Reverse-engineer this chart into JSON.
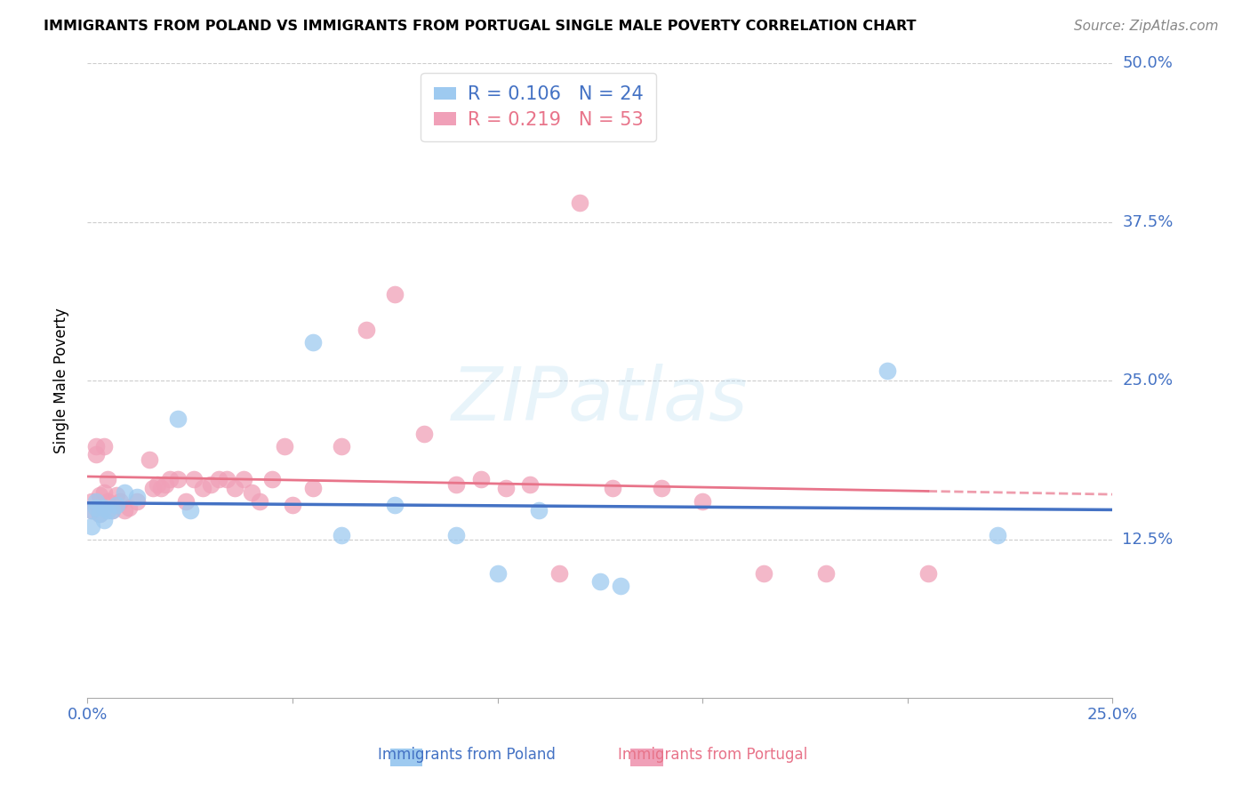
{
  "title": "IMMIGRANTS FROM POLAND VS IMMIGRANTS FROM PORTUGAL SINGLE MALE POVERTY CORRELATION CHART",
  "source": "Source: ZipAtlas.com",
  "ylabel": "Single Male Poverty",
  "xlim": [
    0.0,
    0.25
  ],
  "ylim": [
    0.0,
    0.5
  ],
  "xtick_positions": [
    0.0,
    0.05,
    0.1,
    0.15,
    0.2,
    0.25
  ],
  "xtick_labels": [
    "0.0%",
    "",
    "",
    "",
    "",
    "25.0%"
  ],
  "ytick_gridlines": [
    0.125,
    0.25,
    0.375,
    0.5
  ],
  "ytick_right_labels": [
    "50.0%",
    "37.5%",
    "25.0%",
    "12.5%"
  ],
  "ytick_right_values": [
    0.5,
    0.375,
    0.25,
    0.125
  ],
  "color_poland_fill": "#9ECAF0",
  "color_portugal_fill": "#F0A0B8",
  "color_poland_line": "#4472C4",
  "color_portugal_line": "#E8748A",
  "color_axis_text": "#4472C4",
  "watermark_text": "ZIPatlas",
  "legend_poland_r": "0.106",
  "legend_poland_n": "24",
  "legend_portugal_r": "0.219",
  "legend_portugal_n": "53",
  "poland_x": [
    0.001,
    0.001,
    0.002,
    0.002,
    0.003,
    0.004,
    0.004,
    0.005,
    0.006,
    0.007,
    0.009,
    0.012,
    0.022,
    0.025,
    0.055,
    0.062,
    0.075,
    0.09,
    0.1,
    0.11,
    0.125,
    0.13,
    0.195,
    0.222
  ],
  "poland_y": [
    0.135,
    0.148,
    0.15,
    0.155,
    0.145,
    0.14,
    0.15,
    0.148,
    0.148,
    0.152,
    0.162,
    0.158,
    0.22,
    0.148,
    0.28,
    0.128,
    0.152,
    0.128,
    0.098,
    0.148,
    0.092,
    0.088,
    0.258,
    0.128
  ],
  "portugal_x": [
    0.001,
    0.001,
    0.002,
    0.002,
    0.003,
    0.003,
    0.004,
    0.004,
    0.005,
    0.005,
    0.006,
    0.007,
    0.008,
    0.009,
    0.01,
    0.012,
    0.015,
    0.016,
    0.017,
    0.018,
    0.019,
    0.02,
    0.022,
    0.024,
    0.026,
    0.028,
    0.03,
    0.032,
    0.034,
    0.036,
    0.038,
    0.04,
    0.042,
    0.045,
    0.048,
    0.05,
    0.055,
    0.062,
    0.068,
    0.075,
    0.082,
    0.09,
    0.096,
    0.102,
    0.108,
    0.115,
    0.12,
    0.128,
    0.14,
    0.15,
    0.165,
    0.18,
    0.205
  ],
  "portugal_y": [
    0.148,
    0.155,
    0.198,
    0.192,
    0.145,
    0.16,
    0.162,
    0.198,
    0.155,
    0.172,
    0.148,
    0.16,
    0.155,
    0.148,
    0.15,
    0.155,
    0.188,
    0.165,
    0.168,
    0.165,
    0.168,
    0.172,
    0.172,
    0.155,
    0.172,
    0.165,
    0.168,
    0.172,
    0.172,
    0.165,
    0.172,
    0.162,
    0.155,
    0.172,
    0.198,
    0.152,
    0.165,
    0.198,
    0.29,
    0.318,
    0.208,
    0.168,
    0.172,
    0.165,
    0.168,
    0.098,
    0.39,
    0.165,
    0.165,
    0.155,
    0.098,
    0.098,
    0.098
  ],
  "poland_trendline": [
    0.136,
    0.148
  ],
  "portugal_trendline_solid": [
    0.142,
    0.208
  ],
  "portugal_trendline_dashed": [
    0.208,
    0.248
  ]
}
